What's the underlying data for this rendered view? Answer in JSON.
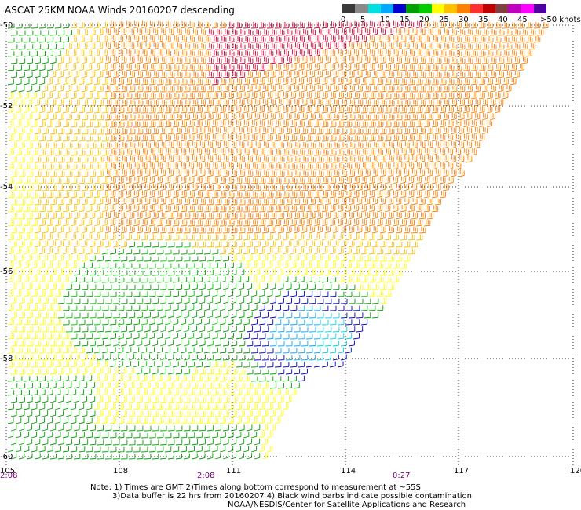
{
  "title": "ASCAT 25KM NOAA Winds 20160207 descending",
  "legend": {
    "labels": [
      "0",
      "5",
      "10",
      "15",
      "20",
      "25",
      "30",
      "35",
      "40",
      "45",
      ">50 knots"
    ],
    "colors": [
      "#3a3a3a",
      "#8a8a8a",
      "#00e0e0",
      "#00a8ff",
      "#0000d0",
      "#00a000",
      "#00cc00",
      "#ffff00",
      "#ffc000",
      "#ff8000",
      "#ff3030",
      "#c00000",
      "#804040",
      "#c000c0",
      "#ff00ff",
      "#5000a0"
    ]
  },
  "map": {
    "lat_labels": [
      "-50",
      "-52",
      "-54",
      "-56",
      "-58",
      "-60"
    ],
    "lon_labels": [
      "105",
      "108",
      "111",
      "114",
      "117",
      "120"
    ],
    "time_labels": [
      "2:08",
      "2:08",
      "0:27"
    ],
    "grid": true
  },
  "notes": {
    "line1": "Note: 1) Times are GMT 2)Times along bottom correspond to measurement at ~55S",
    "line2": "3)Data buffer is 22 hrs from 20160207 4) Black wind barbs indicate possible contamination",
    "line3": "NOAA/NESDIS/Center for Satellite Applications and Research"
  }
}
